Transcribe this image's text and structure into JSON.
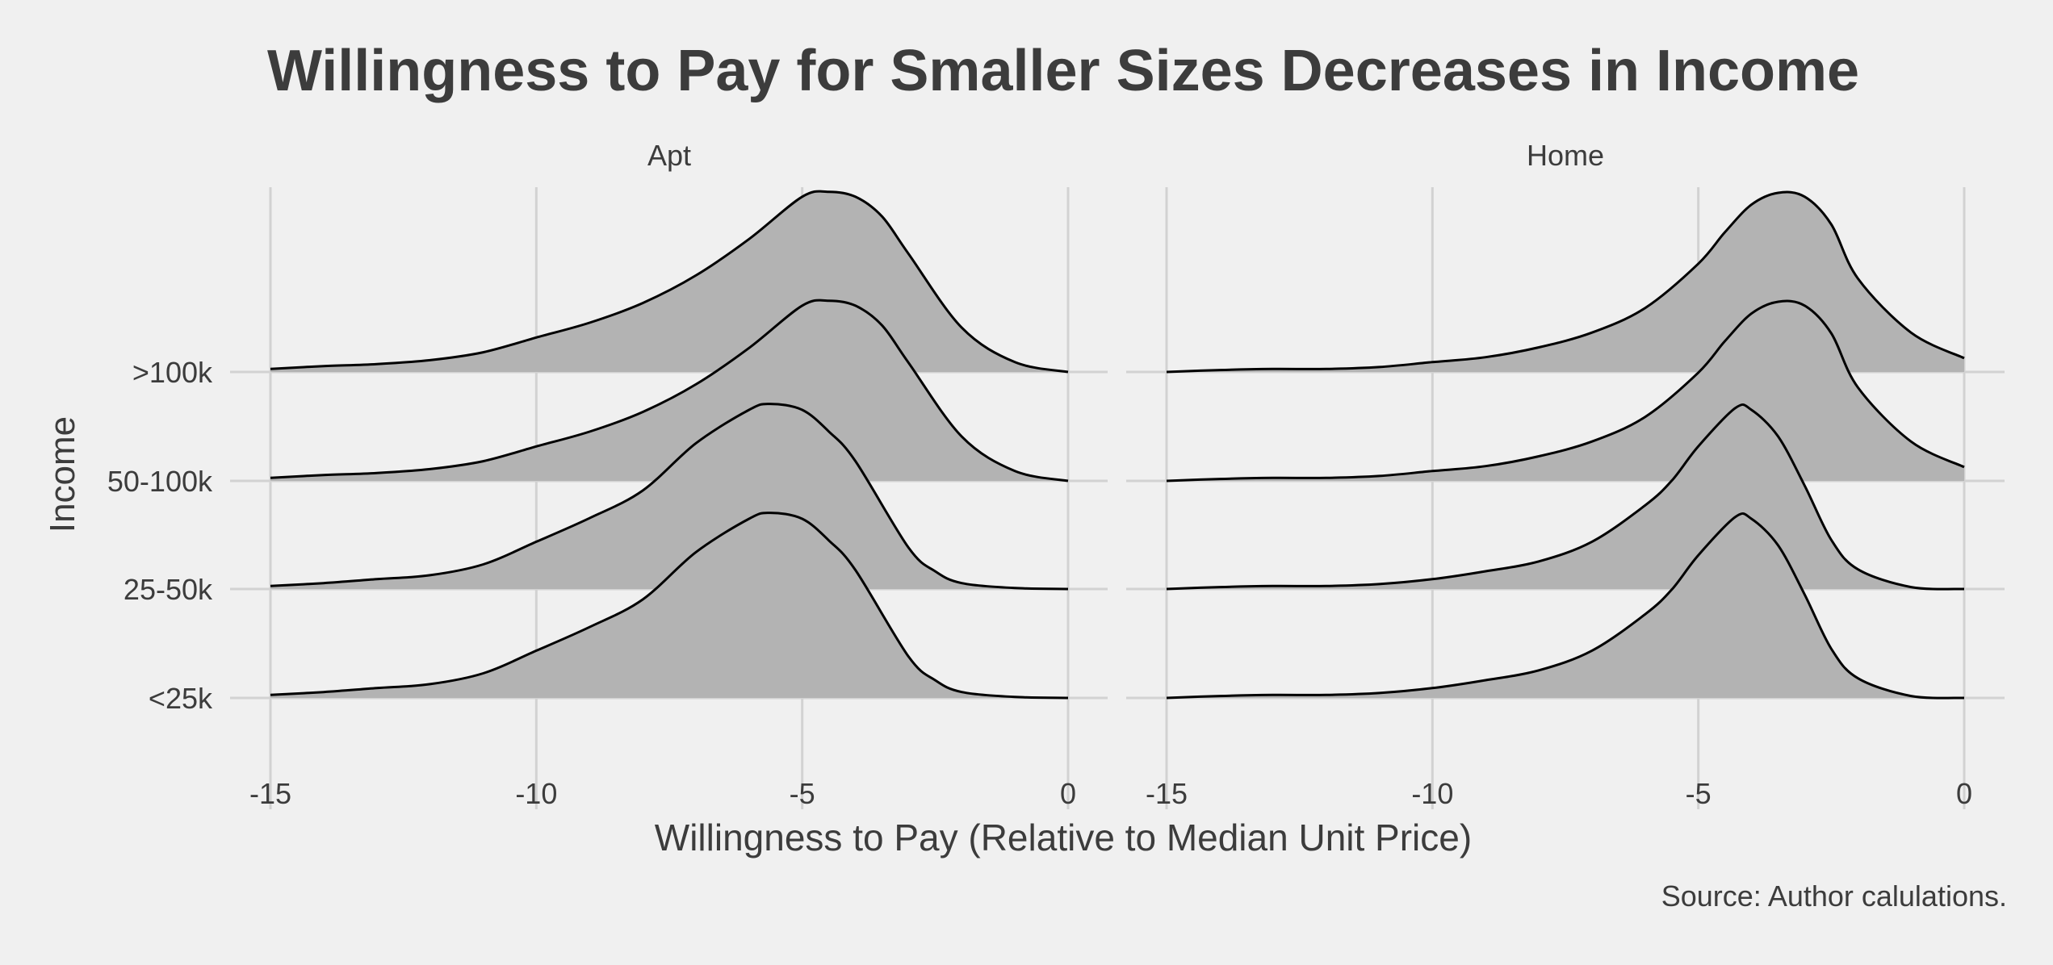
{
  "chart_data": {
    "type": "ridgeline",
    "title": "Willingness to Pay for Smaller Sizes Decreases in Income",
    "xlabel": "Willingness to Pay (Relative to Median Unit Price)",
    "ylabel": "Income",
    "caption": "Source: Author calulations.",
    "xlim": [
      -15,
      0
    ],
    "x_ticks": [
      -15,
      -10,
      -5,
      0
    ],
    "x_tick_labels": [
      "-15",
      "-10",
      "-5",
      "0"
    ],
    "categories": [
      "<25k",
      "25-50k",
      "50-100k",
      ">100k"
    ],
    "grid": true,
    "fill_color": "#b3b3b3",
    "line_color": "#000000",
    "background_color": "#f0f0f0",
    "grid_color": "#d2d2d2",
    "panels": [
      {
        "name": "Apt",
        "series": [
          {
            "name": "<25k",
            "x": [
              -15,
              -14,
              -13,
              -12,
              -11,
              -10,
              -9,
              -8,
              -7,
              -6,
              -5.6,
              -5,
              -4.5,
              -4,
              -3,
              -2.5,
              -2,
              -1,
              0
            ],
            "y": [
              0.03,
              0.06,
              0.1,
              0.14,
              0.25,
              0.48,
              0.72,
              1.0,
              1.48,
              1.82,
              1.88,
              1.82,
              1.6,
              1.3,
              0.42,
              0.18,
              0.06,
              0.01,
              0.0
            ]
          },
          {
            "name": "25-50k",
            "x": [
              -15,
              -14,
              -13,
              -12,
              -11,
              -10,
              -9,
              -8,
              -7,
              -6,
              -5.6,
              -5,
              -4.5,
              -4,
              -3,
              -2.5,
              -2,
              -1,
              0
            ],
            "y": [
              0.03,
              0.06,
              0.1,
              0.14,
              0.25,
              0.48,
              0.72,
              1.0,
              1.48,
              1.82,
              1.88,
              1.82,
              1.6,
              1.3,
              0.42,
              0.18,
              0.06,
              0.01,
              0.0
            ]
          },
          {
            "name": "50-100k",
            "x": [
              -15,
              -14,
              -13,
              -12,
              -11,
              -10,
              -9,
              -8,
              -7,
              -6,
              -5,
              -4.5,
              -4,
              -3.5,
              -3,
              -2,
              -1,
              0
            ],
            "y": [
              0.03,
              0.06,
              0.08,
              0.12,
              0.2,
              0.35,
              0.5,
              0.7,
              0.98,
              1.35,
              1.78,
              1.83,
              1.78,
              1.58,
              1.2,
              0.45,
              0.1,
              0.0
            ]
          },
          {
            "name": ">100k",
            "x": [
              -15,
              -14,
              -13,
              -12,
              -11,
              -10,
              -9,
              -8,
              -7,
              -6,
              -5,
              -4.5,
              -4,
              -3.5,
              -3,
              -2,
              -1,
              0
            ],
            "y": [
              0.03,
              0.06,
              0.08,
              0.12,
              0.2,
              0.35,
              0.5,
              0.7,
              0.98,
              1.35,
              1.78,
              1.83,
              1.78,
              1.58,
              1.2,
              0.45,
              0.1,
              0.0
            ]
          }
        ]
      },
      {
        "name": "Home",
        "series": [
          {
            "name": "<25k",
            "x": [
              -15,
              -14,
              -13,
              -12,
              -11,
              -10,
              -9,
              -8,
              -7,
              -6,
              -5.5,
              -5,
              -4.3,
              -4,
              -3.5,
              -3,
              -2.5,
              -2,
              -1,
              0
            ],
            "y": [
              0.0,
              0.02,
              0.03,
              0.03,
              0.05,
              0.1,
              0.18,
              0.28,
              0.48,
              0.85,
              1.1,
              1.45,
              1.84,
              1.82,
              1.55,
              1.05,
              0.5,
              0.2,
              0.02,
              0.0
            ]
          },
          {
            "name": "25-50k",
            "x": [
              -15,
              -14,
              -13,
              -12,
              -11,
              -10,
              -9,
              -8,
              -7,
              -6,
              -5.5,
              -5,
              -4.3,
              -4,
              -3.5,
              -3,
              -2.5,
              -2,
              -1,
              0
            ],
            "y": [
              0.0,
              0.02,
              0.03,
              0.03,
              0.05,
              0.1,
              0.18,
              0.28,
              0.48,
              0.85,
              1.1,
              1.45,
              1.84,
              1.82,
              1.55,
              1.05,
              0.5,
              0.2,
              0.02,
              0.0
            ]
          },
          {
            "name": "50-100k",
            "x": [
              -15,
              -14,
              -13,
              -12,
              -11,
              -10,
              -9,
              -8,
              -7,
              -6,
              -5,
              -4.5,
              -4,
              -3.5,
              -3,
              -2.5,
              -2,
              -1,
              0
            ],
            "y": [
              0.0,
              0.02,
              0.03,
              0.03,
              0.05,
              0.1,
              0.15,
              0.25,
              0.4,
              0.65,
              1.1,
              1.42,
              1.7,
              1.82,
              1.78,
              1.5,
              0.95,
              0.4,
              0.14
            ]
          },
          {
            "name": ">100k",
            "x": [
              -15,
              -14,
              -13,
              -12,
              -11,
              -10,
              -9,
              -8,
              -7,
              -6,
              -5,
              -4.5,
              -4,
              -3.5,
              -3,
              -2.5,
              -2,
              -1,
              0
            ],
            "y": [
              0.0,
              0.02,
              0.03,
              0.03,
              0.05,
              0.1,
              0.15,
              0.25,
              0.4,
              0.65,
              1.1,
              1.42,
              1.7,
              1.82,
              1.78,
              1.5,
              0.95,
              0.4,
              0.14
            ]
          }
        ]
      }
    ]
  }
}
